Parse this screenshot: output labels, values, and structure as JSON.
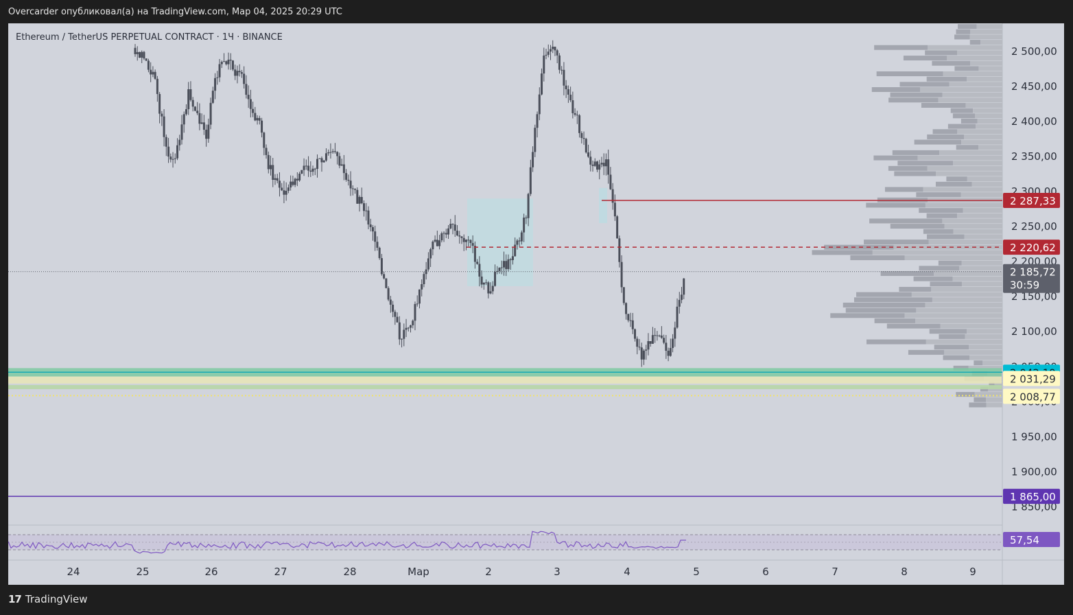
{
  "header": {
    "publisher_text": "Overcarder опубликовал(а) на TradingView.com, Мар 04, 2025 20:29 UTC"
  },
  "footer": {
    "brand": "TradingView"
  },
  "chart_data": {
    "type": "candlestick",
    "title": "Ethereum / TetherUS PERPETUAL CONTRACT · 1Ч · BINANCE",
    "ylim": [
      1825,
      2540
    ],
    "y_ticks": [
      "2 500,00",
      "2 450,00",
      "2 400,00",
      "2 350,00",
      "2 300,00",
      "2 250,00",
      "2 200,00",
      "2 150,00",
      "2 100,00",
      "2 050,00",
      "2 000,00",
      "1 950,00",
      "1 900,00",
      "1 850,00"
    ],
    "y_tick_values": [
      2500,
      2450,
      2400,
      2350,
      2300,
      2250,
      2200,
      2150,
      2100,
      2050,
      2000,
      1950,
      1900,
      1850
    ],
    "x_ticks": [
      "24",
      "25",
      "26",
      "27",
      "28",
      "Мар",
      "2",
      "3",
      "4",
      "5",
      "6",
      "7",
      "8",
      "9"
    ],
    "current_price": {
      "label": "2 185,72",
      "countdown": "30:59",
      "value": 2185.72
    },
    "levels": [
      {
        "name": "resistance-line",
        "label": "2 287,33",
        "value": 2287.33,
        "color": "#b22833",
        "style": "solid"
      },
      {
        "name": "poc-line",
        "label": "2 220,62",
        "value": 2220.62,
        "color": "#b22833",
        "style": "dashed"
      },
      {
        "name": "support-cyan",
        "label": "2 042,19",
        "value": 2042.19,
        "color": "#00bcd4",
        "style": "zone"
      },
      {
        "name": "support-yellow-1",
        "label": "2 031,29",
        "value": 2031.29,
        "color": "#fff9c4",
        "style": "zone"
      },
      {
        "name": "support-yellow-2",
        "label": "2 008,77",
        "value": 2008.77,
        "color": "#fff9c4",
        "style": "dotted"
      },
      {
        "name": "purple-line",
        "label": "1 865,00",
        "value": 1865.0,
        "color": "#5e35b1",
        "style": "solid"
      }
    ],
    "rsi": {
      "label": "57,54",
      "value": 57.54
    },
    "price_path": [
      [
        0,
        2505
      ],
      [
        1,
        2490
      ],
      [
        2,
        2470
      ],
      [
        3,
        2400
      ],
      [
        4,
        2340
      ],
      [
        5,
        2370
      ],
      [
        6,
        2440
      ],
      [
        7,
        2410
      ],
      [
        8,
        2380
      ],
      [
        9,
        2460
      ],
      [
        10,
        2490
      ],
      [
        11,
        2475
      ],
      [
        12,
        2460
      ],
      [
        13,
        2420
      ],
      [
        14,
        2395
      ],
      [
        15,
        2340
      ],
      [
        16,
        2310
      ],
      [
        17,
        2300
      ],
      [
        18,
        2320
      ],
      [
        19,
        2335
      ],
      [
        20,
        2330
      ],
      [
        21,
        2345
      ],
      [
        22,
        2360
      ],
      [
        23,
        2340
      ],
      [
        24,
        2310
      ],
      [
        25,
        2290
      ],
      [
        26,
        2270
      ],
      [
        27,
        2230
      ],
      [
        28,
        2170
      ],
      [
        29,
        2120
      ],
      [
        30,
        2090
      ],
      [
        31,
        2110
      ],
      [
        32,
        2160
      ],
      [
        33,
        2210
      ],
      [
        34,
        2230
      ],
      [
        35,
        2245
      ],
      [
        36,
        2250
      ],
      [
        37,
        2235
      ],
      [
        38,
        2215
      ],
      [
        39,
        2170
      ],
      [
        40,
        2160
      ],
      [
        41,
        2200
      ],
      [
        42,
        2195
      ],
      [
        43,
        2225
      ],
      [
        44,
        2265
      ],
      [
        45,
        2390
      ],
      [
        46,
        2500
      ],
      [
        47,
        2510
      ],
      [
        48,
        2470
      ],
      [
        49,
        2430
      ],
      [
        50,
        2390
      ],
      [
        51,
        2350
      ],
      [
        52,
        2330
      ],
      [
        53,
        2345
      ],
      [
        54,
        2265
      ],
      [
        55,
        2140
      ],
      [
        56,
        2110
      ],
      [
        57,
        2060
      ],
      [
        58,
        2090
      ],
      [
        59,
        2100
      ],
      [
        60,
        2060
      ],
      [
        61,
        2130
      ],
      [
        62,
        2185
      ]
    ]
  }
}
